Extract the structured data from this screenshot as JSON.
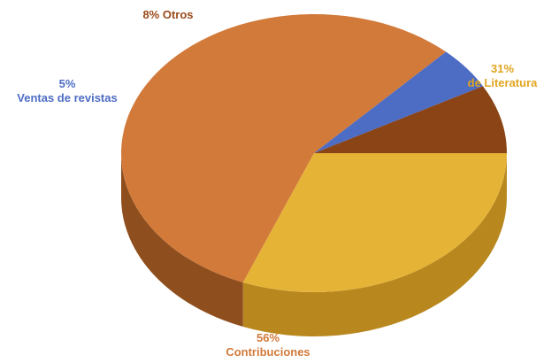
{
  "chart_data": {
    "type": "pie",
    "three_d": true,
    "legend": "none",
    "slices": [
      {
        "name": "de Literatura",
        "value": 31,
        "value_label": "31%",
        "color": "#E5B437",
        "side_color": "#B8881F"
      },
      {
        "name": "Contribuciones",
        "value": 56,
        "value_label": "56%",
        "color": "#D27A3A",
        "side_color": "#8F4E1E"
      },
      {
        "name": "Ventas de revistas",
        "value": 5,
        "value_label": "5%",
        "color": "#4D6CC4",
        "side_color": "#2F4C96"
      },
      {
        "name": "Otros",
        "value": 8,
        "value_label": "8% Otros",
        "color": "#8A4416",
        "side_color": "#5E2C0C"
      }
    ],
    "label_colors": {
      "de Literatura": "#E1A51E",
      "Contribuciones": "#D27A3A",
      "Ventas de revistas": "#4D6CC4",
      "Otros": "#9A4A1A"
    }
  }
}
